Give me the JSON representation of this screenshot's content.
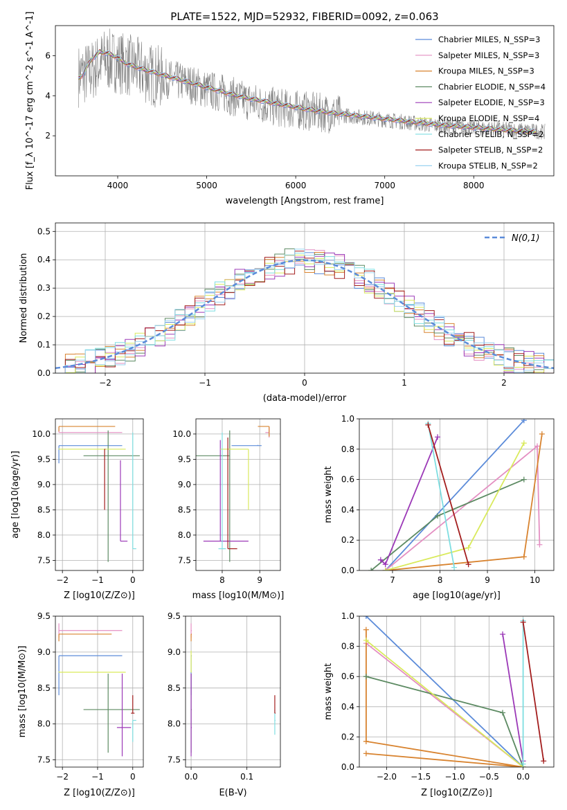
{
  "figure_title": "PLATE=1522, MJD=52932, FIBERID=0092, z=0.063",
  "colors": {
    "series": [
      "#5b8bd9",
      "#e48fc2",
      "#d8832f",
      "#5c8a62",
      "#9b38b7",
      "#d9ea5b",
      "#7edee1",
      "#a31d1d",
      "#9bd3f0"
    ],
    "data_spectrum": "#808080",
    "grid": "#b0b0b0",
    "normal_curve": "#5b8bd9"
  },
  "chart_data": [
    {
      "type": "line",
      "id": "spectrum",
      "xlabel": "wavelength [Angstrom, rest frame]",
      "ylabel": "Flux [f_λ 10^-17 erg cm^-2 s^-1 A^-1]",
      "xlim": [
        3300,
        8900
      ],
      "ylim": [
        0,
        7.5
      ],
      "xticks": [
        "4000",
        "5000",
        "6000",
        "7000",
        "8000"
      ],
      "yticks": [
        "2",
        "4",
        "6"
      ],
      "legend": [
        "Chabrier MILES, N_SSP=3",
        "Salpeter MILES, N_SSP=3",
        "Kroupa MILES, N_SSP=3",
        "Chabrier ELODIE, N_SSP=4",
        "Salpeter ELODIE, N_SSP=3",
        "Kroupa ELODIE, N_SSP=4",
        "Chabrier STELIB, N_SSP=2",
        "Salpeter STELIB, N_SSP=2",
        "Kroupa STELIB, N_SSP=2"
      ],
      "legend_position": "top-right",
      "grid": false,
      "data_x": [
        3560,
        3700,
        3850,
        4000,
        4200,
        4400,
        4600,
        4800,
        5000,
        5200,
        5400,
        5600,
        5800,
        6000,
        6200,
        6400,
        6600,
        6800,
        7000,
        7200,
        7400,
        7600,
        7800,
        8000,
        8200,
        8400,
        8600,
        8800
      ],
      "data_y": [
        5.0,
        5.2,
        5.8,
        5.7,
        5.4,
        5.0,
        4.8,
        4.6,
        4.3,
        4.1,
        3.8,
        3.6,
        3.4,
        3.3,
        3.2,
        3.1,
        3.0,
        2.9,
        2.8,
        2.7,
        2.6,
        2.5,
        2.45,
        2.4,
        2.35,
        2.3,
        2.25,
        2.2
      ],
      "model_x": [
        3560,
        3600,
        3700,
        3800,
        3900,
        4000,
        4100,
        4300,
        4500,
        4700,
        4900,
        5100,
        5300,
        5500,
        5800,
        6100,
        6400,
        6700,
        7000,
        7300,
        7600,
        7900,
        8200,
        8500,
        8700
      ],
      "model_y": [
        4.9,
        5.0,
        5.8,
        6.2,
        6.1,
        5.9,
        5.6,
        5.3,
        5.05,
        4.8,
        4.55,
        4.3,
        4.05,
        3.85,
        3.6,
        3.35,
        3.15,
        3.0,
        2.85,
        2.7,
        2.55,
        2.45,
        2.35,
        2.25,
        2.2
      ]
    },
    {
      "type": "area",
      "id": "residuals",
      "xlabel": "(data-model)/error",
      "ylabel": "Normed distribution",
      "xlim": [
        -2.5,
        2.5
      ],
      "ylim": [
        0,
        0.53
      ],
      "xticks": [
        "−2",
        "−1",
        "0",
        "1",
        "2"
      ],
      "yticks": [
        "0.0",
        "0.1",
        "0.2",
        "0.3",
        "0.4",
        "0.5"
      ],
      "legend": [
        "N(0,1)"
      ],
      "legend_position": "top-right",
      "grid": true,
      "bin_width": 0.1
    },
    {
      "type": "scatter",
      "id": "age_vs_Z",
      "xlabel": "Z [log10(Z/Z⊙)]",
      "ylabel": "age [log10(age/yr)]",
      "xlim": [
        -2.2,
        0.3
      ],
      "ylim": [
        7.3,
        10.3
      ],
      "xticks": [
        "−2",
        "−1",
        "0"
      ],
      "yticks": [
        "7.5",
        "8.0",
        "8.5",
        "9.0",
        "9.5",
        "10.0"
      ],
      "grid": true,
      "points": [
        {
          "x": -2.1,
          "y": 9.77,
          "xerr": [
            0,
            1.8
          ],
          "yerr": [
            0.35,
            0
          ]
        },
        {
          "x": -2.1,
          "y": 10.03,
          "xerr": [
            0,
            1.8
          ],
          "yerr": [
            0.0,
            0.1
          ]
        },
        {
          "x": -2.1,
          "y": 10.15,
          "xerr": [
            0,
            1.6
          ],
          "yerr": [
            0.1,
            0
          ]
        },
        {
          "x": -0.7,
          "y": 9.57,
          "xerr": [
            0.7,
            0.9
          ],
          "yerr": [
            2.1,
            0.5
          ]
        },
        {
          "x": -0.35,
          "y": 7.88,
          "xerr": [
            0.0,
            0.2
          ],
          "yerr": [
            0.0,
            1.6
          ]
        },
        {
          "x": -2.1,
          "y": 9.7,
          "xerr": [
            0.0,
            1.9
          ],
          "yerr": [
            0.0,
            0.0
          ]
        },
        {
          "x": 0.0,
          "y": 7.73,
          "xerr": [
            0.0,
            0.1
          ],
          "yerr": [
            0.0,
            2.3
          ]
        },
        {
          "x": -0.8,
          "y": 9.7,
          "xerr": [
            0.0,
            0.0
          ],
          "yerr": [
            1.2,
            0.0
          ]
        }
      ]
    },
    {
      "type": "scatter",
      "id": "age_vs_mass",
      "xlabel": "mass [log10(M/M⊙)]",
      "ylabel": "",
      "xlim": [
        7.3,
        9.55
      ],
      "ylim": [
        7.3,
        10.3
      ],
      "xticks": [
        "8",
        "9"
      ],
      "yticks": [
        "7.5",
        "8.0",
        "8.5",
        "9.0",
        "9.5",
        "10.0"
      ],
      "grid": true,
      "points": [
        {
          "x": 8.95,
          "y": 9.77,
          "xerr": [
            0.7,
            0.1
          ],
          "yerr": [
            0.0,
            0.0
          ]
        },
        {
          "x": 9.25,
          "y": 10.03,
          "xerr": [
            0.1,
            0.0
          ],
          "yerr": [
            0.1,
            0.1
          ]
        },
        {
          "x": 9.25,
          "y": 10.15,
          "xerr": [
            0.3,
            0.0
          ],
          "yerr": [
            0.2,
            0.0
          ]
        },
        {
          "x": 8.2,
          "y": 9.57,
          "xerr": [
            0.9,
            0.0
          ],
          "yerr": [
            2.1,
            0.5
          ]
        },
        {
          "x": 7.95,
          "y": 7.88,
          "xerr": [
            0.45,
            0.75
          ],
          "yerr": [
            0.0,
            2.0
          ]
        },
        {
          "x": 8.7,
          "y": 9.7,
          "xerr": [
            0.75,
            0.0
          ],
          "yerr": [
            1.2,
            0.0
          ]
        },
        {
          "x": 8.0,
          "y": 7.73,
          "xerr": [
            0.1,
            0.1
          ],
          "yerr": [
            0.0,
            2.3
          ]
        },
        {
          "x": 8.15,
          "y": 7.73,
          "xerr": [
            0.0,
            0.25
          ],
          "yerr": [
            0.0,
            2.2
          ]
        }
      ]
    },
    {
      "type": "line",
      "id": "weight_vs_age",
      "xlabel": "age [log10(age/yr)]",
      "ylabel": "mass weight",
      "xlim": [
        6.3,
        10.4
      ],
      "ylim": [
        0,
        1
      ],
      "xticks": [
        "7",
        "8",
        "9",
        "10"
      ],
      "yticks": [
        "0.0",
        "0.2",
        "0.4",
        "0.6",
        "0.8",
        "1.0"
      ],
      "grid": true,
      "series": [
        {
          "x": [
            6.85,
            9.77
          ],
          "y": [
            0.0,
            0.99
          ]
        },
        {
          "x": [
            6.85,
            10.05,
            10.1
          ],
          "y": [
            0.0,
            0.82,
            0.17
          ]
        },
        {
          "x": [
            6.85,
            9.77,
            10.15
          ],
          "y": [
            0.0,
            0.09,
            0.9
          ]
        },
        {
          "x": [
            6.55,
            7.95,
            9.77
          ],
          "y": [
            0.0,
            0.36,
            0.6
          ]
        },
        {
          "x": [
            6.75,
            6.85,
            7.95
          ],
          "y": [
            0.07,
            0.04,
            0.88
          ]
        },
        {
          "x": [
            6.85,
            8.6,
            9.77
          ],
          "y": [
            0.0,
            0.15,
            0.84
          ]
        },
        {
          "x": [
            7.75,
            8.3
          ],
          "y": [
            0.97,
            0.02
          ]
        },
        {
          "x": [
            7.75,
            8.6
          ],
          "y": [
            0.96,
            0.04
          ]
        }
      ]
    },
    {
      "type": "scatter",
      "id": "mass_vs_Z",
      "xlabel": "Z [log10(Z/Z⊙)]",
      "ylabel": "mass [log10(M/M⊙)]",
      "xlim": [
        -2.2,
        0.3
      ],
      "ylim": [
        7.4,
        9.5
      ],
      "xticks": [
        "−2",
        "−1",
        "0"
      ],
      "yticks": [
        "7.5",
        "8.0",
        "8.5",
        "9.0",
        "9.5"
      ],
      "grid": true,
      "points": [
        {
          "x": -2.1,
          "y": 8.95,
          "xerr": [
            0,
            1.8
          ],
          "yerr": [
            0.55,
            0.0
          ]
        },
        {
          "x": -2.1,
          "y": 9.3,
          "xerr": [
            0,
            1.8
          ],
          "yerr": [
            0.1,
            0.1
          ]
        },
        {
          "x": -2.1,
          "y": 9.25,
          "xerr": [
            0,
            1.5
          ],
          "yerr": [
            0.1,
            0.0
          ]
        },
        {
          "x": -0.7,
          "y": 8.2,
          "xerr": [
            0.7,
            0.9
          ],
          "yerr": [
            0.6,
            0.5
          ]
        },
        {
          "x": -0.3,
          "y": 7.95,
          "xerr": [
            0.15,
            0.25
          ],
          "yerr": [
            0.4,
            0.75
          ]
        },
        {
          "x": -2.1,
          "y": 8.72,
          "xerr": [
            0.0,
            1.9
          ],
          "yerr": [
            0.0,
            0.0
          ]
        },
        {
          "x": 0.0,
          "y": 8.05,
          "xerr": [
            0.0,
            0.1
          ],
          "yerr": [
            0.3,
            0.0
          ]
        },
        {
          "x": 0.0,
          "y": 8.15,
          "xerr": [
            0.05,
            0.05
          ],
          "yerr": [
            0.0,
            0.25
          ]
        }
      ]
    },
    {
      "type": "scatter",
      "id": "mass_vs_ebv",
      "xlabel": "E(B-V)",
      "ylabel": "",
      "xlim": [
        -0.01,
        0.16
      ],
      "ylim": [
        7.4,
        9.5
      ],
      "xticks": [
        "0.0",
        "0.1"
      ],
      "yticks": [
        "7.5",
        "8.0",
        "8.5",
        "9.0",
        "9.5"
      ],
      "grid": true,
      "points": [
        {
          "x": 0.0,
          "y": 8.95,
          "xerr": [
            0,
            0
          ],
          "yerr": [
            0.55,
            0.0
          ]
        },
        {
          "x": 0.0,
          "y": 9.3,
          "xerr": [
            0,
            0
          ],
          "yerr": [
            0.1,
            0.1
          ]
        },
        {
          "x": 0.0,
          "y": 9.25,
          "xerr": [
            0,
            0
          ],
          "yerr": [
            0.1,
            0.0
          ]
        },
        {
          "x": 0.0,
          "y": 8.2,
          "xerr": [
            0,
            0
          ],
          "yerr": [
            0.6,
            0.5
          ]
        },
        {
          "x": 0.0,
          "y": 7.95,
          "xerr": [
            0,
            0
          ],
          "yerr": [
            0.4,
            0.75
          ]
        },
        {
          "x": 0.0,
          "y": 8.72,
          "xerr": [
            0,
            0
          ],
          "yerr": [
            0.0,
            0.3
          ]
        },
        {
          "x": 0.15,
          "y": 8.05,
          "xerr": [
            0,
            0
          ],
          "yerr": [
            0.2,
            0.15
          ]
        },
        {
          "x": 0.15,
          "y": 8.15,
          "xerr": [
            0,
            0
          ],
          "yerr": [
            0.0,
            0.25
          ]
        }
      ]
    },
    {
      "type": "line",
      "id": "weight_vs_Z",
      "xlabel": "Z [log10(Z/Z⊙)]",
      "ylabel": "mass weight",
      "xlim": [
        -2.4,
        0.45
      ],
      "ylim": [
        0,
        1
      ],
      "xticks": [
        "−2.0",
        "−1.5",
        "−1.0",
        "−0.5",
        "0.0"
      ],
      "yticks": [
        "0.0",
        "0.2",
        "0.4",
        "0.6",
        "0.8",
        "1.0"
      ],
      "grid": true,
      "series": [
        {
          "x": [
            -2.3,
            0.0
          ],
          "y": [
            1.0,
            0.0
          ]
        },
        {
          "x": [
            -2.3,
            0.0
          ],
          "y": [
            0.82,
            0.0
          ]
        },
        {
          "x": [
            -2.3,
            -2.3,
            0.0,
            -2.3
          ],
          "y": [
            0.91,
            0.17,
            0.0,
            0.09
          ]
        },
        {
          "x": [
            -2.3,
            -0.3,
            0.0
          ],
          "y": [
            0.6,
            0.36,
            0.0
          ]
        },
        {
          "x": [
            -0.3,
            0.0
          ],
          "y": [
            0.88,
            0.04
          ]
        },
        {
          "x": [
            -2.3,
            0.0
          ],
          "y": [
            0.84,
            0.0
          ]
        },
        {
          "x": [
            0.0,
            0.0
          ],
          "y": [
            0.97,
            0.02
          ]
        },
        {
          "x": [
            0.0,
            0.3
          ],
          "y": [
            0.96,
            0.04
          ]
        }
      ]
    }
  ]
}
